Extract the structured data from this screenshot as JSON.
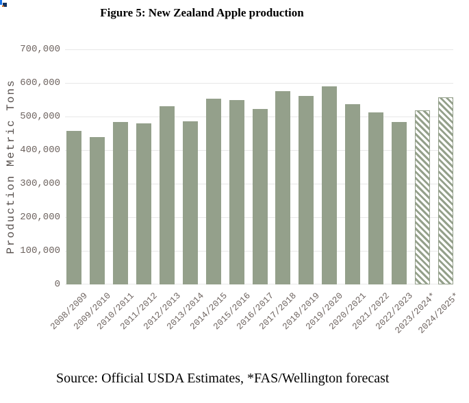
{
  "chart_data": {
    "type": "bar",
    "title": "Figure 5: New Zealand Apple production",
    "ylabel": "Production Metric Tons",
    "xlabel": "",
    "ylim": [
      0,
      700000
    ],
    "ytick_interval": 100000,
    "grid": "horizontal",
    "legend_position": "none",
    "yticks": [
      {
        "value": 700000,
        "label": "700,000"
      },
      {
        "value": 600000,
        "label": "600,000"
      },
      {
        "value": 500000,
        "label": "500,000"
      },
      {
        "value": 400000,
        "label": "400,000"
      },
      {
        "value": 300000,
        "label": "300,000"
      },
      {
        "value": 200000,
        "label": "200,000"
      },
      {
        "value": 100000,
        "label": "100,000"
      },
      {
        "value": 0,
        "label": "0"
      }
    ],
    "categories": [
      "2008/2009",
      "2009/2010",
      "2010/2011",
      "2011/2012",
      "2012/2013",
      "2013/2014",
      "2014/2015",
      "2015/2016",
      "2016/2017",
      "2017/2018",
      "2018/2019",
      "2019/2020",
      "2020/2021",
      "2021/2022",
      "2022/2023",
      "2023/2024*",
      "2024/2025*"
    ],
    "values": [
      457000,
      438000,
      483000,
      480000,
      530000,
      485000,
      553000,
      548000,
      522000,
      575000,
      562000,
      590000,
      537000,
      512000,
      483000,
      518000,
      558000
    ],
    "forecast_flags": [
      false,
      false,
      false,
      false,
      false,
      false,
      false,
      false,
      false,
      false,
      false,
      false,
      false,
      false,
      false,
      true,
      true
    ],
    "source_note": "Source: Official USDA Estimates, *FAS/Wellington forecast",
    "styles": {
      "bar_color": "#94A08B",
      "forecast_fill": "white-with-diagonal-hatch",
      "gridline_color": "#E7E7E7",
      "axis_text_color": "#6E6460",
      "background": "#FFFFFF"
    }
  }
}
